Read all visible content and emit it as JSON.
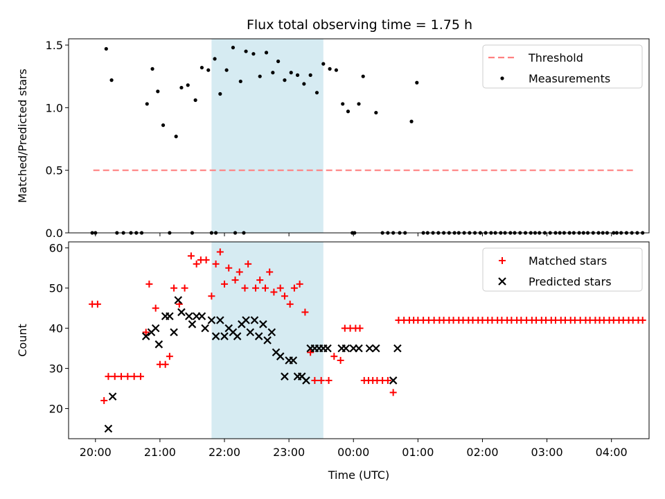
{
  "chart_data": [
    {
      "type": "scatter",
      "title": "Flux total observing time = 1.75 h",
      "xlabel": "",
      "ylabel": "Matched/Predicted stars",
      "xlim": [
        "19:35",
        "04:35"
      ],
      "ylim": [
        0,
        1.55
      ],
      "yticks": [
        "0.0",
        "0.5",
        "1.0",
        "1.5"
      ],
      "highlight_span": {
        "from": "21:48",
        "to": "23:32",
        "color": "#add8e6"
      },
      "legend_position": "top-right",
      "series": [
        {
          "name": "Threshold",
          "style": "dashed-line",
          "color": "#ff8080",
          "x": [
            "19:58",
            "04:20"
          ],
          "y": [
            0.5,
            0.5
          ]
        },
        {
          "name": "Measurements",
          "style": "dot",
          "color": "#000000",
          "x": [
            "19:57",
            "20:00",
            "20:10",
            "20:15",
            "20:20",
            "20:26",
            "20:33",
            "20:38",
            "20:43",
            "20:48",
            "20:53",
            "20:58",
            "21:03",
            "21:09",
            "21:15",
            "21:20",
            "21:26",
            "21:33",
            "21:39",
            "21:45",
            "21:51",
            "21:56",
            "22:02",
            "22:08",
            "22:15",
            "22:20",
            "22:27",
            "22:33",
            "22:39",
            "22:45",
            "22:50",
            "22:56",
            "23:02",
            "23:08",
            "23:14",
            "23:20",
            "23:26",
            "23:32",
            "23:38",
            "23:44",
            "23:50",
            "23:55",
            "23:59",
            "00:01",
            "00:05",
            "00:09",
            "00:21",
            "00:27",
            "00:32",
            "00:37",
            "00:43",
            "00:48",
            "00:54",
            "00:59",
            "01:05",
            "01:09",
            "01:14",
            "01:19",
            "01:24",
            "01:29",
            "01:34",
            "01:38",
            "01:43",
            "01:48",
            "01:53",
            "01:58",
            "02:03",
            "02:08",
            "02:12",
            "02:17",
            "02:21",
            "02:26",
            "02:30",
            "02:35",
            "02:40",
            "02:45",
            "02:49",
            "02:53",
            "02:58",
            "03:03",
            "03:08",
            "03:12",
            "03:16",
            "03:21",
            "03:25",
            "03:30",
            "03:34",
            "03:38",
            "03:43",
            "03:48",
            "03:52",
            "03:56",
            "04:02",
            "04:05",
            "04:09",
            "04:14",
            "04:19",
            "04:24",
            "04:29",
            "21:48",
            "21:52",
            "22:10",
            "22:18",
            "21:30"
          ],
          "y": [
            0,
            0,
            1.47,
            1.22,
            0,
            0,
            0,
            0,
            0,
            1.03,
            1.31,
            1.13,
            0.86,
            0,
            0.77,
            1.16,
            1.18,
            1.06,
            1.32,
            1.3,
            1.39,
            1.11,
            1.3,
            1.48,
            1.21,
            1.45,
            1.43,
            1.25,
            1.44,
            1.28,
            1.37,
            1.22,
            1.28,
            1.26,
            1.19,
            1.26,
            1.12,
            1.35,
            1.31,
            1.3,
            1.03,
            0.97,
            0,
            0,
            1.03,
            1.25,
            0.96,
            0,
            0,
            0,
            0,
            0,
            0.89,
            1.2,
            0,
            0,
            0,
            0,
            0,
            0,
            0,
            0,
            0,
            0,
            0,
            0,
            0,
            0,
            0,
            0,
            0,
            0,
            0,
            0,
            0,
            0,
            0,
            0,
            0,
            0,
            0,
            0,
            0,
            0,
            0,
            0,
            0,
            0,
            0,
            0,
            0,
            0,
            0,
            0,
            0,
            0,
            0,
            0,
            0,
            0,
            0,
            0,
            0,
            0
          ]
        }
      ]
    },
    {
      "type": "scatter",
      "title": "",
      "xlabel": "Time (UTC)",
      "ylabel": "Count",
      "xlim": [
        "19:35",
        "04:35"
      ],
      "ylim": [
        12.5,
        61.5
      ],
      "yticks": [
        "20",
        "30",
        "40",
        "50",
        "60"
      ],
      "xticks": [
        "20:00",
        "21:00",
        "22:00",
        "23:00",
        "00:00",
        "01:00",
        "02:00",
        "03:00",
        "04:00"
      ],
      "highlight_span": {
        "from": "21:48",
        "to": "23:32",
        "color": "#add8e6"
      },
      "legend_position": "top-right",
      "series": [
        {
          "name": "Matched stars",
          "style": "plus",
          "color": "#ff0000",
          "x": [
            "19:57",
            "20:02",
            "20:08",
            "20:12",
            "20:18",
            "20:24",
            "20:30",
            "20:36",
            "20:42",
            "20:47",
            "20:50",
            "20:56",
            "21:00",
            "21:05",
            "21:09",
            "21:13",
            "21:18",
            "21:23",
            "21:29",
            "21:34",
            "21:38",
            "21:43",
            "21:48",
            "21:52",
            "21:56",
            "22:00",
            "22:04",
            "22:10",
            "22:14",
            "22:19",
            "22:22",
            "22:29",
            "22:33",
            "22:38",
            "22:42",
            "22:46",
            "22:52",
            "22:56",
            "23:01",
            "23:05",
            "23:10",
            "23:15",
            "23:20",
            "23:24",
            "23:30",
            "23:37",
            "23:42",
            "23:48",
            "23:52",
            "23:57",
            "00:02",
            "00:06",
            "00:10",
            "00:14",
            "00:18",
            "00:22",
            "00:27",
            "00:32",
            "00:37",
            "00:42",
            "00:47",
            "00:52",
            "00:56",
            "01:00",
            "01:05",
            "01:10",
            "01:15",
            "01:20",
            "01:24",
            "01:29",
            "01:33",
            "01:38",
            "01:42",
            "01:47",
            "01:51",
            "01:56",
            "02:00",
            "02:05",
            "02:09",
            "02:14",
            "02:18",
            "02:23",
            "02:27",
            "02:32",
            "02:36",
            "02:41",
            "02:46",
            "02:50",
            "02:55",
            "02:59",
            "03:04",
            "03:08",
            "03:13",
            "03:17",
            "03:22",
            "03:26",
            "03:31",
            "03:36",
            "03:40",
            "03:45",
            "03:49",
            "03:53",
            "03:58",
            "04:02",
            "04:07",
            "04:11",
            "04:16",
            "04:20",
            "04:25",
            "04:29"
          ],
          "y": [
            46,
            46,
            22,
            28,
            28,
            28,
            28,
            28,
            28,
            39,
            51,
            45,
            31,
            31,
            33,
            50,
            46,
            50,
            58,
            56,
            57,
            57,
            48,
            56,
            59,
            51,
            55,
            52,
            54,
            50,
            56,
            50,
            52,
            50,
            54,
            49,
            50,
            48,
            46,
            50,
            51,
            44,
            34,
            27,
            27,
            27,
            33,
            32,
            40,
            40,
            40,
            40,
            27,
            27,
            27,
            27,
            27,
            27,
            24,
            42,
            42,
            42,
            42,
            42,
            42,
            42,
            42,
            42,
            42,
            42,
            42,
            42,
            42,
            42,
            42,
            42,
            42,
            42,
            42,
            42,
            42,
            42,
            42,
            42,
            42,
            42,
            42,
            42,
            42,
            42,
            42,
            42,
            42,
            42,
            42,
            42,
            42,
            42,
            42,
            42,
            42,
            42,
            42,
            42,
            42,
            42,
            42,
            42,
            42,
            42
          ]
        },
        {
          "name": "Predicted stars",
          "style": "x",
          "color": "#000000",
          "x": [
            "20:12",
            "20:16",
            "20:47",
            "20:52",
            "20:56",
            "20:59",
            "21:05",
            "21:09",
            "21:13",
            "21:17",
            "21:20",
            "21:27",
            "21:30",
            "21:34",
            "21:39",
            "21:42",
            "21:48",
            "21:52",
            "21:56",
            "22:00",
            "22:04",
            "22:08",
            "22:12",
            "22:16",
            "22:20",
            "22:24",
            "22:28",
            "22:32",
            "22:36",
            "22:40",
            "22:44",
            "22:48",
            "22:52",
            "22:56",
            "23:00",
            "23:04",
            "23:08",
            "23:12",
            "23:16",
            "23:20",
            "23:24",
            "23:28",
            "23:32",
            "23:36",
            "23:49",
            "23:53",
            "00:00",
            "00:05",
            "00:15",
            "00:21",
            "00:37",
            "00:41"
          ],
          "y": [
            15,
            23,
            38,
            39,
            40,
            36,
            43,
            43,
            39,
            47,
            44,
            43,
            41,
            43,
            43,
            40,
            42,
            38,
            42,
            38,
            40,
            39,
            38,
            41,
            42,
            39,
            42,
            38,
            41,
            37,
            39,
            34,
            33,
            28,
            32,
            32,
            28,
            28,
            27,
            35,
            35,
            35,
            35,
            35,
            35,
            35,
            35,
            35,
            35,
            35,
            27,
            35
          ]
        }
      ]
    }
  ]
}
